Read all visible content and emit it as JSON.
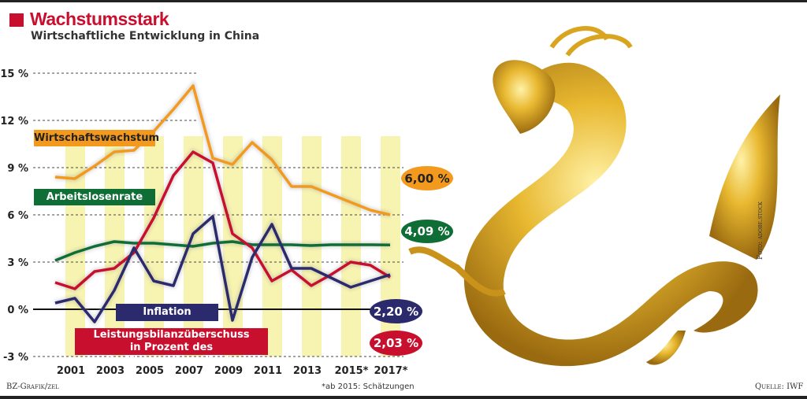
{
  "header": {
    "title": "Wachstumsstark",
    "subtitle": "Wirtschaftliche Entwicklung in China"
  },
  "colors": {
    "orange": "#f39a1e",
    "green": "#0f6e35",
    "red": "#c8102e",
    "navy": "#2b2a6c",
    "highlight": "#f7f3b0"
  },
  "chart_data": {
    "type": "line",
    "x": [
      2000,
      2001,
      2002,
      2003,
      2004,
      2005,
      2006,
      2007,
      2008,
      2009,
      2010,
      2011,
      2012,
      2013,
      2014,
      2015,
      2016,
      2017
    ],
    "x_tick_labels": [
      "2001",
      "2003",
      "2005",
      "2007",
      "2009",
      "2011",
      "2013",
      "2015*",
      "2017*"
    ],
    "y_tick_labels": [
      "15 %",
      "12 %",
      "9 %",
      "6 %",
      "3 %",
      "0 %",
      "-3 %"
    ],
    "ylim": [
      -3,
      15
    ],
    "series": [
      {
        "name": "Wirtschaftswachstum",
        "color": "#f39a1e",
        "end_label": "6,00 %",
        "values": [
          8.4,
          8.3,
          9.1,
          10.0,
          10.1,
          11.3,
          12.7,
          14.2,
          9.6,
          9.2,
          10.6,
          9.5,
          7.8,
          7.8,
          7.3,
          6.8,
          6.3,
          6.0
        ]
      },
      {
        "name": "Arbeitslosenrate",
        "color": "#0f6e35",
        "end_label": "4,09 %",
        "values": [
          3.1,
          3.6,
          4.0,
          4.3,
          4.2,
          4.2,
          4.1,
          4.0,
          4.2,
          4.3,
          4.1,
          4.1,
          4.1,
          4.05,
          4.1,
          4.1,
          4.1,
          4.09
        ]
      },
      {
        "name": "Leistungsbilanzüberschuss in Prozent des Bruttoinlandsprodukts",
        "label_line1": "Leistungsbilanzüberschuss",
        "label_line2": "in Prozent des Bruttoinlandsprodukts",
        "color": "#c8102e",
        "end_label": "2,03 %",
        "values": [
          1.7,
          1.3,
          2.4,
          2.6,
          3.6,
          5.8,
          8.5,
          10.0,
          9.3,
          4.8,
          3.9,
          1.8,
          2.5,
          1.5,
          2.2,
          3.0,
          2.8,
          2.03
        ]
      },
      {
        "name": "Inflation",
        "color": "#2b2a6c",
        "end_label": "2,20 %",
        "values": [
          0.4,
          0.7,
          -0.8,
          1.2,
          3.9,
          1.8,
          1.5,
          4.8,
          5.9,
          -0.7,
          3.3,
          5.4,
          2.6,
          2.6,
          2.0,
          1.4,
          1.8,
          2.2
        ]
      }
    ],
    "annotation": "*ab 2015: Schätzungen"
  },
  "footer": {
    "left": "BZ-Grafik/zel",
    "note": "*ab 2015: Schätzungen",
    "source": "Quelle: IWF",
    "photo_credit": "Foto: adobe.stock"
  }
}
